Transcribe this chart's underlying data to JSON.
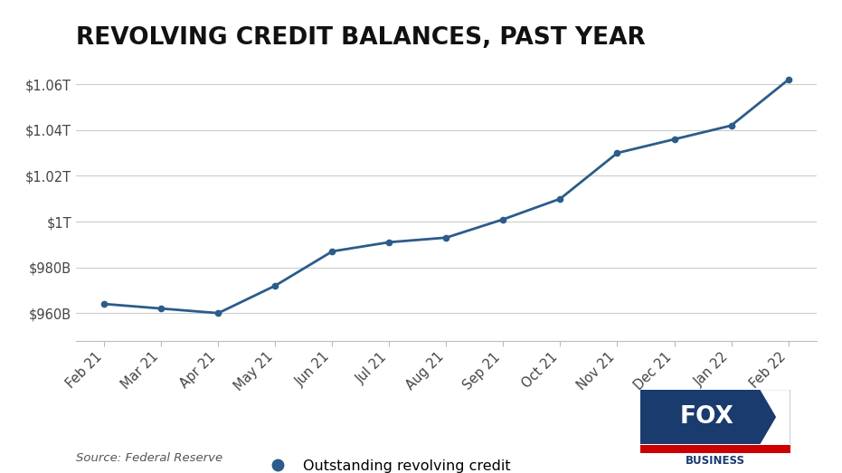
{
  "title": "REVOLVING CREDIT BALANCES, PAST YEAR",
  "x_labels": [
    "Feb 21",
    "Mar 21",
    "Apr 21",
    "May 21",
    "Jun 21",
    "Jul 21",
    "Aug 21",
    "Sep 21",
    "Oct 21",
    "Nov 21",
    "Dec 21",
    "Jan 22",
    "Feb 22"
  ],
  "values_billions": [
    964,
    962,
    960,
    972,
    987,
    991,
    993,
    1001,
    1010,
    1030,
    1036,
    1042,
    1062
  ],
  "line_color": "#2b5c8a",
  "marker_color": "#2b5c8a",
  "background_color": "#ffffff",
  "grid_color": "#cccccc",
  "title_fontsize": 19,
  "tick_fontsize": 10.5,
  "legend_label": "Outstanding revolving credit",
  "source_text": "Source: Federal Reserve",
  "ytick_values": [
    960,
    980,
    1000,
    1020,
    1040,
    1060
  ],
  "ytick_labels": [
    "$960B",
    "$980B",
    "$1T",
    "$1.02T",
    "$1.04T",
    "$1.06T"
  ],
  "ymin": 948,
  "ymax": 1070
}
